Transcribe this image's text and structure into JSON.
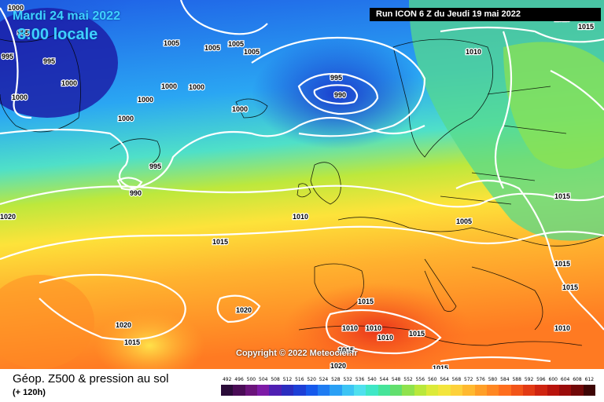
{
  "overlay": {
    "date": "Mardi 24 mai 2022",
    "time": "8:00 locale",
    "run": "Run ICON 6 Z du Jeudi 19 mai 2022",
    "copyright": "Copyright © 2022 Meteociel.fr"
  },
  "footer": {
    "title": "Géop. Z500 & pression au sol",
    "subtitle": "(+ 120h)"
  },
  "scale": {
    "labels": [
      "492",
      "496",
      "500",
      "504",
      "508",
      "512",
      "516",
      "520",
      "524",
      "528",
      "532",
      "536",
      "540",
      "544",
      "548",
      "552",
      "556",
      "560",
      "564",
      "568",
      "572",
      "576",
      "580",
      "584",
      "588",
      "592",
      "596",
      "600",
      "604",
      "608",
      "612"
    ],
    "colors": [
      "#2a0b38",
      "#4a0c56",
      "#6a137a",
      "#7d1aa6",
      "#4f1fb2",
      "#2b2dbf",
      "#1d3fd6",
      "#1659ec",
      "#1f7cf2",
      "#2aa0f5",
      "#3cc4f4",
      "#4fe0ee",
      "#3fe7c6",
      "#45e49a",
      "#62df6e",
      "#8fe24d",
      "#b9e83b",
      "#dcea39",
      "#f3e53c",
      "#fdd13a",
      "#ffb92f",
      "#ff9f27",
      "#ff8722",
      "#ff6e1d",
      "#f25418",
      "#e23a14",
      "#cf2410",
      "#b8130c",
      "#9a0b0a",
      "#710808",
      "#3d0505"
    ]
  },
  "isobar_labels": [
    {
      "text": "1000",
      "tone": "dark"
    },
    {
      "text": "995",
      "tone": "dark"
    },
    {
      "text": "995",
      "tone": "dark"
    },
    {
      "text": "1005",
      "tone": "dark"
    },
    {
      "text": "995",
      "tone": "dark"
    },
    {
      "text": "1000",
      "tone": "dark"
    },
    {
      "text": "1000",
      "tone": "dark"
    },
    {
      "text": "1005",
      "tone": "dark"
    },
    {
      "text": "1005",
      "tone": "dark"
    },
    {
      "text": "1005",
      "tone": "dark"
    },
    {
      "text": "1000",
      "tone": "dark"
    },
    {
      "text": "1000",
      "tone": "dark"
    },
    {
      "text": "1000",
      "tone": "dark"
    },
    {
      "text": "1000",
      "tone": "dark"
    },
    {
      "text": "1000",
      "tone": "dark"
    },
    {
      "text": "995",
      "tone": "dark"
    },
    {
      "text": "990",
      "tone": "dark"
    },
    {
      "text": "995",
      "tone": "dark"
    },
    {
      "text": "990",
      "tone": "dark"
    },
    {
      "text": "1010",
      "tone": "dark"
    },
    {
      "text": "1015",
      "tone": "dark"
    },
    {
      "text": "1010",
      "tone": "dark"
    },
    {
      "text": "1005",
      "tone": "dark"
    },
    {
      "text": "1015",
      "tone": "dark"
    },
    {
      "text": "1015",
      "tone": "dark"
    },
    {
      "text": "1015",
      "tone": "dark"
    },
    {
      "text": "1010",
      "tone": "dark"
    },
    {
      "text": "1015",
      "tone": "dark"
    },
    {
      "text": "1020",
      "tone": "dark"
    },
    {
      "text": "1020",
      "tone": "dark"
    },
    {
      "text": "1015",
      "tone": "dark"
    },
    {
      "text": "1010",
      "tone": "dark"
    },
    {
      "text": "1010",
      "tone": "dark"
    },
    {
      "text": "1010",
      "tone": "dark"
    },
    {
      "text": "1015",
      "tone": "dark"
    },
    {
      "text": "1015",
      "tone": "dark"
    },
    {
      "text": "1015",
      "tone": "dark"
    },
    {
      "text": "1020",
      "tone": "dark"
    },
    {
      "text": "1015",
      "tone": "dark"
    },
    {
      "text": "1015",
      "tone": "dark"
    },
    {
      "text": "1020",
      "tone": "dark"
    }
  ]
}
